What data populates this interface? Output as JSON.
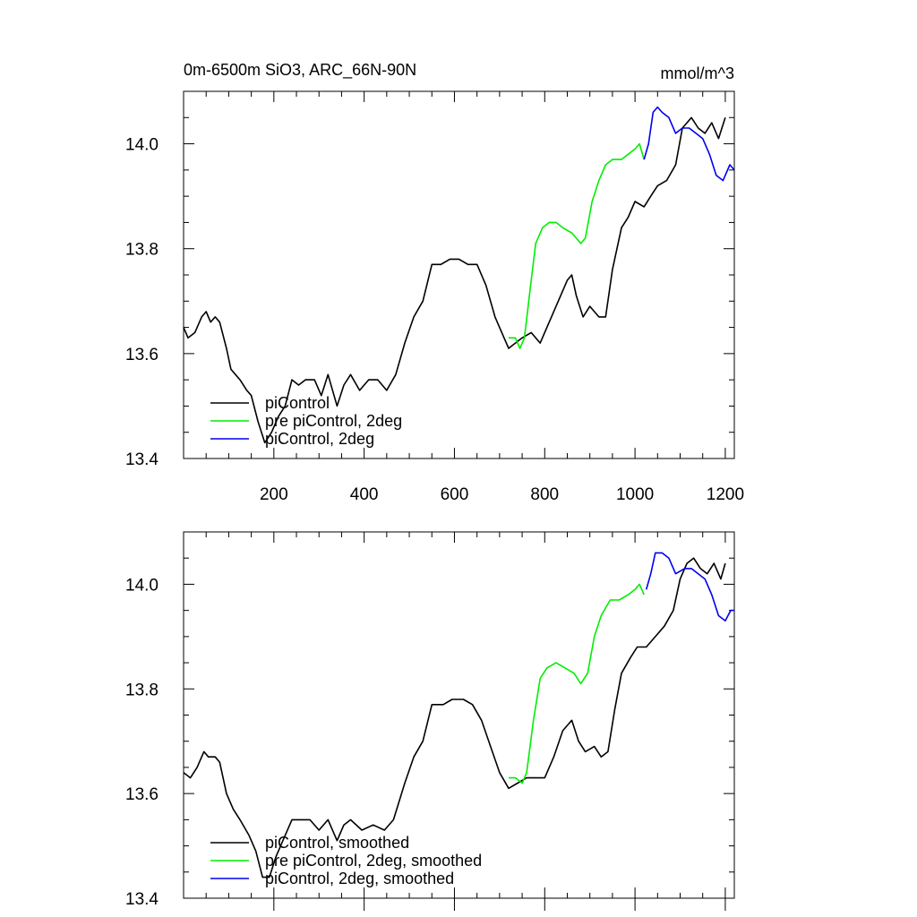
{
  "chart_data": [
    {
      "type": "line",
      "title": "0m-6500m SiO3, ARC_66N-90N",
      "units_label": "mmol/m^3",
      "xlabel": "",
      "ylabel": "",
      "xlim": [
        0,
        1220
      ],
      "ylim": [
        13.4,
        14.1
      ],
      "xticks": [
        200,
        400,
        600,
        800,
        1000,
        1200
      ],
      "xtick_labels": [
        "200",
        "400",
        "600",
        "800",
        "1000",
        "1200"
      ],
      "yticks": [
        13.4,
        13.6,
        13.8,
        14.0
      ],
      "ytick_labels": [
        "13.4",
        "13.6",
        "13.8",
        "14.0"
      ],
      "grid": false,
      "legend_position": "bottom-left",
      "series": [
        {
          "name": "piControl",
          "color": "#000000",
          "points": [
            [
              0,
              13.65
            ],
            [
              10,
              13.63
            ],
            [
              25,
              13.64
            ],
            [
              40,
              13.67
            ],
            [
              50,
              13.68
            ],
            [
              60,
              13.66
            ],
            [
              70,
              13.67
            ],
            [
              80,
              13.66
            ],
            [
              95,
              13.61
            ],
            [
              105,
              13.57
            ],
            [
              115,
              13.56
            ],
            [
              125,
              13.55
            ],
            [
              140,
              13.53
            ],
            [
              150,
              13.52
            ],
            [
              165,
              13.47
            ],
            [
              180,
              13.43
            ],
            [
              195,
              13.45
            ],
            [
              210,
              13.48
            ],
            [
              225,
              13.5
            ],
            [
              240,
              13.55
            ],
            [
              255,
              13.54
            ],
            [
              270,
              13.55
            ],
            [
              290,
              13.55
            ],
            [
              305,
              13.52
            ],
            [
              320,
              13.56
            ],
            [
              340,
              13.5
            ],
            [
              355,
              13.54
            ],
            [
              370,
              13.56
            ],
            [
              390,
              13.53
            ],
            [
              410,
              13.55
            ],
            [
              430,
              13.55
            ],
            [
              450,
              13.53
            ],
            [
              470,
              13.56
            ],
            [
              490,
              13.62
            ],
            [
              510,
              13.67
            ],
            [
              530,
              13.7
            ],
            [
              550,
              13.77
            ],
            [
              570,
              13.77
            ],
            [
              590,
              13.78
            ],
            [
              610,
              13.78
            ],
            [
              630,
              13.77
            ],
            [
              650,
              13.77
            ],
            [
              670,
              13.73
            ],
            [
              690,
              13.67
            ],
            [
              710,
              13.63
            ],
            [
              720,
              13.61
            ],
            [
              735,
              13.62
            ],
            [
              750,
              13.63
            ],
            [
              770,
              13.64
            ],
            [
              790,
              13.62
            ],
            [
              810,
              13.66
            ],
            [
              830,
              13.7
            ],
            [
              850,
              13.74
            ],
            [
              860,
              13.75
            ],
            [
              870,
              13.71
            ],
            [
              885,
              13.67
            ],
            [
              900,
              13.69
            ],
            [
              920,
              13.67
            ],
            [
              935,
              13.67
            ],
            [
              950,
              13.76
            ],
            [
              970,
              13.84
            ],
            [
              985,
              13.86
            ],
            [
              1000,
              13.89
            ],
            [
              1020,
              13.88
            ],
            [
              1035,
              13.9
            ],
            [
              1050,
              13.92
            ],
            [
              1070,
              13.93
            ],
            [
              1090,
              13.96
            ],
            [
              1105,
              14.03
            ],
            [
              1115,
              14.04
            ],
            [
              1125,
              14.05
            ],
            [
              1140,
              14.03
            ],
            [
              1155,
              14.02
            ],
            [
              1170,
              14.04
            ],
            [
              1185,
              14.01
            ],
            [
              1200,
              14.05
            ]
          ]
        },
        {
          "name": "pre piControl, 2deg",
          "color": "#00ee00",
          "points": [
            [
              720,
              13.63
            ],
            [
              735,
              13.63
            ],
            [
              745,
              13.61
            ],
            [
              755,
              13.63
            ],
            [
              770,
              13.74
            ],
            [
              780,
              13.81
            ],
            [
              795,
              13.84
            ],
            [
              810,
              13.85
            ],
            [
              825,
              13.85
            ],
            [
              840,
              13.84
            ],
            [
              860,
              13.83
            ],
            [
              880,
              13.81
            ],
            [
              890,
              13.82
            ],
            [
              905,
              13.89
            ],
            [
              920,
              13.93
            ],
            [
              935,
              13.96
            ],
            [
              950,
              13.97
            ],
            [
              970,
              13.97
            ],
            [
              985,
              13.98
            ],
            [
              1000,
              13.99
            ],
            [
              1010,
              14.0
            ],
            [
              1020,
              13.97
            ]
          ]
        },
        {
          "name": "piControl, 2deg",
          "color": "#0000ee",
          "points": [
            [
              1020,
              13.97
            ],
            [
              1030,
              14.0
            ],
            [
              1040,
              14.06
            ],
            [
              1050,
              14.07
            ],
            [
              1060,
              14.06
            ],
            [
              1075,
              14.05
            ],
            [
              1090,
              14.02
            ],
            [
              1105,
              14.03
            ],
            [
              1120,
              14.03
            ],
            [
              1135,
              14.02
            ],
            [
              1150,
              14.01
            ],
            [
              1165,
              13.98
            ],
            [
              1180,
              13.94
            ],
            [
              1195,
              13.93
            ],
            [
              1210,
              13.96
            ],
            [
              1220,
              13.95
            ]
          ]
        }
      ]
    },
    {
      "type": "line",
      "title": "",
      "xlabel": "",
      "ylabel": "",
      "xlim": [
        0,
        1220
      ],
      "ylim": [
        13.4,
        14.1
      ],
      "xticks": [
        200,
        400,
        600,
        800,
        1000,
        1200
      ],
      "xtick_labels": [],
      "yticks": [
        13.4,
        13.6,
        13.8,
        14.0
      ],
      "ytick_labels": [
        "13.4",
        "13.6",
        "13.8",
        "14.0"
      ],
      "grid": false,
      "legend_position": "bottom-left",
      "series": [
        {
          "name": "piControl, smoothed",
          "color": "#000000",
          "points": [
            [
              0,
              13.64
            ],
            [
              15,
              13.63
            ],
            [
              30,
              13.65
            ],
            [
              45,
              13.68
            ],
            [
              55,
              13.67
            ],
            [
              70,
              13.67
            ],
            [
              80,
              13.66
            ],
            [
              95,
              13.6
            ],
            [
              110,
              13.57
            ],
            [
              125,
              13.55
            ],
            [
              145,
              13.52
            ],
            [
              160,
              13.49
            ],
            [
              175,
              13.44
            ],
            [
              190,
              13.44
            ],
            [
              205,
              13.48
            ],
            [
              225,
              13.52
            ],
            [
              240,
              13.55
            ],
            [
              260,
              13.55
            ],
            [
              280,
              13.55
            ],
            [
              300,
              13.53
            ],
            [
              320,
              13.55
            ],
            [
              340,
              13.51
            ],
            [
              355,
              13.54
            ],
            [
              370,
              13.55
            ],
            [
              395,
              13.53
            ],
            [
              420,
              13.54
            ],
            [
              445,
              13.53
            ],
            [
              465,
              13.55
            ],
            [
              490,
              13.62
            ],
            [
              510,
              13.67
            ],
            [
              530,
              13.7
            ],
            [
              550,
              13.77
            ],
            [
              575,
              13.77
            ],
            [
              595,
              13.78
            ],
            [
              620,
              13.78
            ],
            [
              640,
              13.77
            ],
            [
              660,
              13.74
            ],
            [
              680,
              13.69
            ],
            [
              700,
              13.64
            ],
            [
              720,
              13.61
            ],
            [
              740,
              13.62
            ],
            [
              760,
              13.63
            ],
            [
              780,
              13.63
            ],
            [
              800,
              13.63
            ],
            [
              820,
              13.67
            ],
            [
              840,
              13.72
            ],
            [
              860,
              13.74
            ],
            [
              875,
              13.7
            ],
            [
              890,
              13.68
            ],
            [
              910,
              13.69
            ],
            [
              925,
              13.67
            ],
            [
              940,
              13.68
            ],
            [
              955,
              13.76
            ],
            [
              970,
              13.83
            ],
            [
              990,
              13.86
            ],
            [
              1005,
              13.88
            ],
            [
              1025,
              13.88
            ],
            [
              1045,
              13.9
            ],
            [
              1065,
              13.92
            ],
            [
              1085,
              13.95
            ],
            [
              1100,
              14.01
            ],
            [
              1115,
              14.04
            ],
            [
              1130,
              14.05
            ],
            [
              1145,
              14.03
            ],
            [
              1160,
              14.02
            ],
            [
              1175,
              14.04
            ],
            [
              1190,
              14.01
            ],
            [
              1200,
              14.04
            ]
          ]
        },
        {
          "name": "pre piControl, 2deg, smoothed",
          "color": "#00ee00",
          "points": [
            [
              720,
              13.63
            ],
            [
              735,
              13.63
            ],
            [
              750,
              13.62
            ],
            [
              760,
              13.64
            ],
            [
              775,
              13.74
            ],
            [
              790,
              13.82
            ],
            [
              805,
              13.84
            ],
            [
              825,
              13.85
            ],
            [
              845,
              13.84
            ],
            [
              865,
              13.83
            ],
            [
              880,
              13.81
            ],
            [
              895,
              13.83
            ],
            [
              910,
              13.9
            ],
            [
              925,
              13.94
            ],
            [
              945,
              13.97
            ],
            [
              965,
              13.97
            ],
            [
              985,
              13.98
            ],
            [
              1000,
              13.99
            ],
            [
              1010,
              14.0
            ],
            [
              1020,
              13.98
            ]
          ]
        },
        {
          "name": "piControl, 2deg, smoothed",
          "color": "#0000ee",
          "points": [
            [
              1025,
              13.99
            ],
            [
              1035,
              14.02
            ],
            [
              1045,
              14.06
            ],
            [
              1060,
              14.06
            ],
            [
              1075,
              14.05
            ],
            [
              1090,
              14.02
            ],
            [
              1110,
              14.03
            ],
            [
              1125,
              14.03
            ],
            [
              1140,
              14.02
            ],
            [
              1155,
              14.01
            ],
            [
              1170,
              13.98
            ],
            [
              1185,
              13.94
            ],
            [
              1200,
              13.93
            ],
            [
              1212,
              13.95
            ],
            [
              1220,
              13.95
            ]
          ]
        }
      ]
    }
  ]
}
